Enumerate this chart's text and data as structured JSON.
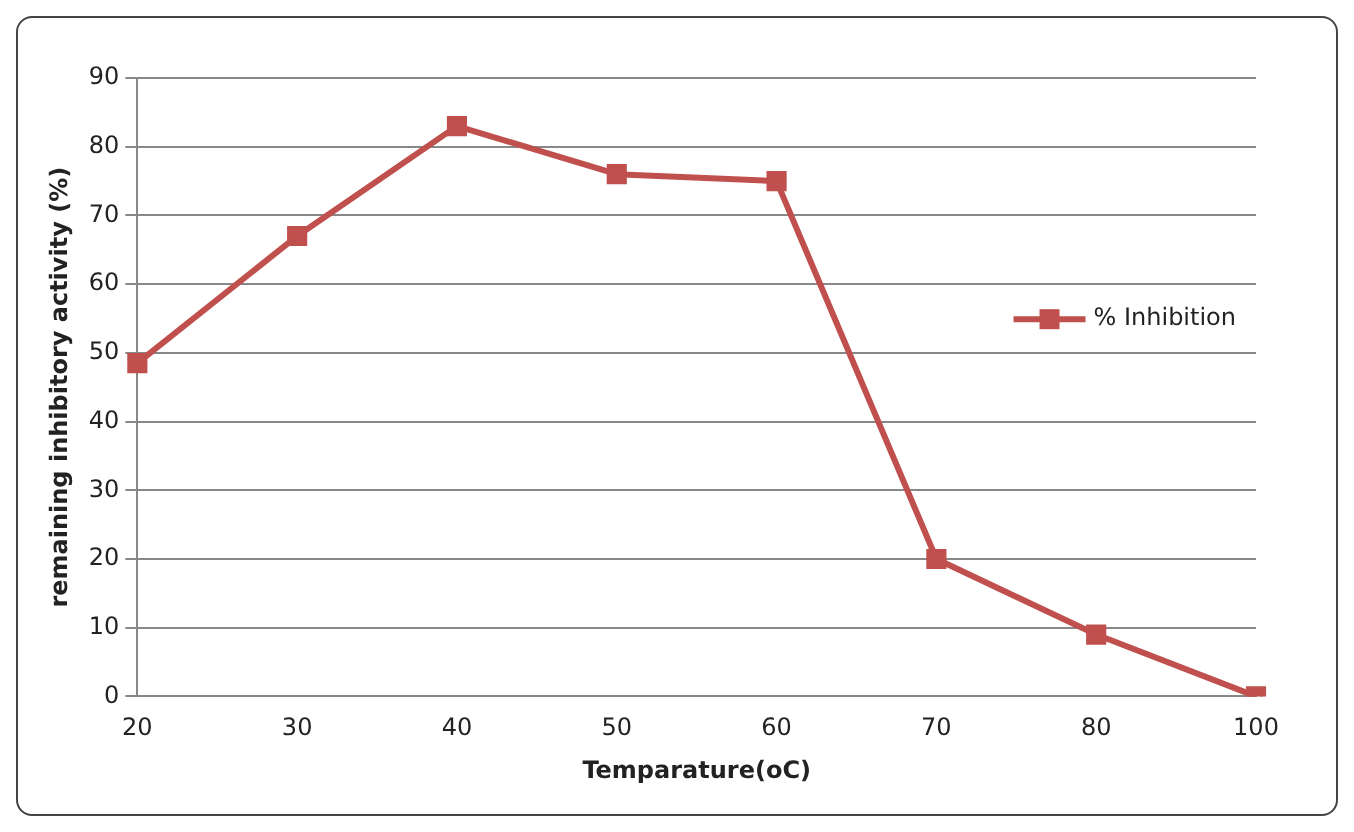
{
  "chart_data": {
    "type": "line",
    "xlabel": "Temparature(oC)",
    "ylabel": "remaining inhibitory activity (%)",
    "categories": [
      "20",
      "30",
      "40",
      "50",
      "60",
      "70",
      "80",
      "100"
    ],
    "series": [
      {
        "name": "% Inhibition",
        "color": "#c0504d",
        "values": [
          48.5,
          67,
          83,
          76,
          75,
          20,
          9,
          0
        ]
      }
    ],
    "ylim": [
      0,
      90
    ],
    "yticks": [
      0,
      10,
      20,
      30,
      40,
      50,
      60,
      70,
      80,
      90
    ],
    "grid": "y",
    "legend": "right",
    "marker": "square",
    "line_style": "solid"
  }
}
